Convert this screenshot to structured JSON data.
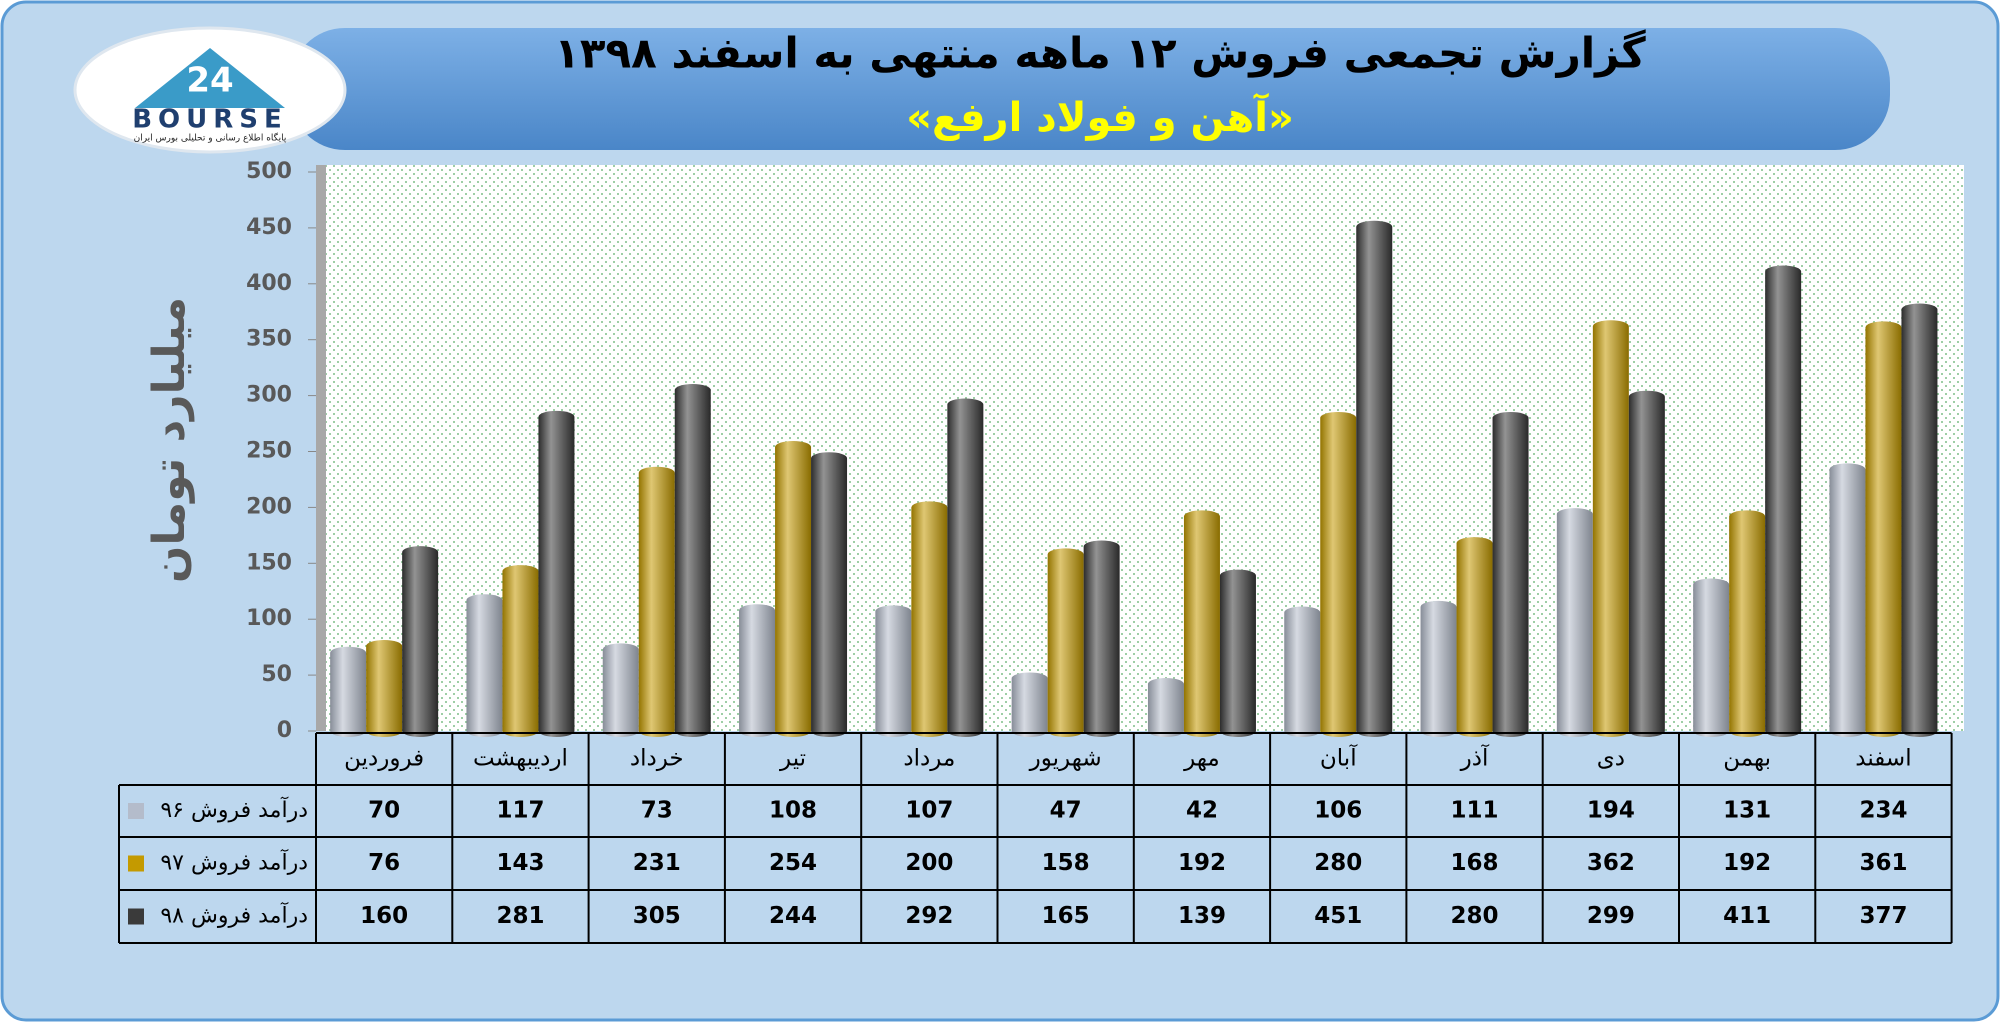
{
  "chart_data": {
    "type": "bar",
    "title": "گزارش تجمعی فروش ۱۲ ماهه منتهی به اسفند ۱۳۹۸",
    "subtitle": "«آهن و فولاد ارفع»",
    "y_label": "میلیارد تومان",
    "logo": {
      "mark": "24",
      "name": "BOURSE",
      "tagline": "پایگاه اطلاع رسانی و تحلیلی بورس ایران"
    },
    "categories": [
      "فروردین",
      "اردیبهشت",
      "خرداد",
      "تیر",
      "مرداد",
      "شهریور",
      "مهر",
      "آبان",
      "آذر",
      "دی",
      "بهمن",
      "اسفند"
    ],
    "series": [
      {
        "name": "درآمد فروش ۹۶",
        "color": "#b4bccb",
        "values": [
          70,
          117,
          73,
          108,
          107,
          47,
          42,
          106,
          111,
          194,
          131,
          234
        ]
      },
      {
        "name": "درآمد فروش ۹۷",
        "color": "#c49a00",
        "values": [
          76,
          143,
          231,
          254,
          200,
          158,
          192,
          280,
          168,
          362,
          192,
          361
        ]
      },
      {
        "name": "درآمد فروش ۹۸",
        "color": "#3a3a3a",
        "values": [
          160,
          281,
          305,
          244,
          292,
          165,
          139,
          451,
          280,
          299,
          411,
          377
        ]
      }
    ],
    "ylim": [
      0,
      500
    ],
    "yticks": [
      0,
      50,
      100,
      150,
      200,
      250,
      300,
      350,
      400,
      450,
      500
    ]
  }
}
